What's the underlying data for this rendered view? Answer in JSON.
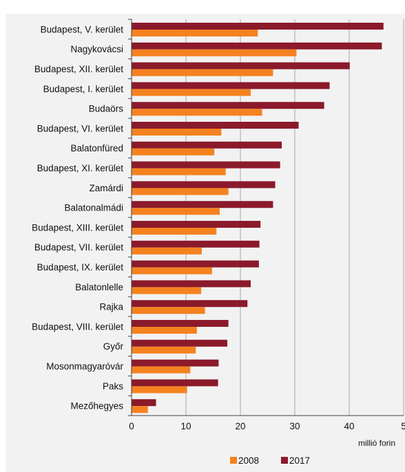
{
  "chart_data": {
    "type": "bar",
    "orientation": "horizontal",
    "categories": [
      "Budapest, V. kerület",
      "Nagykovácsi",
      "Budapest, XII. kerület",
      "Budapest, I. kerület",
      "Budaörs",
      "Budapest, VI. kerület",
      "Balatonfüred",
      "Budapest, XI. kerület",
      "Zamárdi",
      "Balatonalmádi",
      "Budapest, XIII. kerület",
      "Budapest, VII. kerület",
      "Budapest, IX. kerület",
      "Balatonlelle",
      "Rajka",
      "Budapest, VIII. kerület",
      "Győr",
      "Mosonmagyaróvár",
      "Paks",
      "Mezőhegyes"
    ],
    "series": [
      {
        "name": "2008",
        "color": "#f58220",
        "values": [
          23.2,
          30.3,
          26.0,
          21.9,
          24.0,
          16.5,
          15.2,
          17.3,
          17.8,
          16.2,
          15.6,
          12.9,
          14.8,
          12.8,
          13.5,
          12.0,
          11.8,
          10.8,
          10.2,
          3.0
        ]
      },
      {
        "name": "2017",
        "color": "#8b1a2b",
        "values": [
          46.3,
          46.0,
          40.1,
          36.4,
          35.4,
          30.7,
          27.6,
          27.3,
          26.4,
          26.0,
          23.7,
          23.5,
          23.4,
          21.9,
          21.3,
          17.8,
          17.6,
          16.0,
          15.9,
          4.5
        ]
      }
    ],
    "xlim": [
      0,
      50
    ],
    "xticks": [
      "0",
      "10",
      "20",
      "30",
      "40",
      "5"
    ],
    "xlabel": "millió forin",
    "title": "",
    "grid": true,
    "legend_position": "bottom"
  }
}
